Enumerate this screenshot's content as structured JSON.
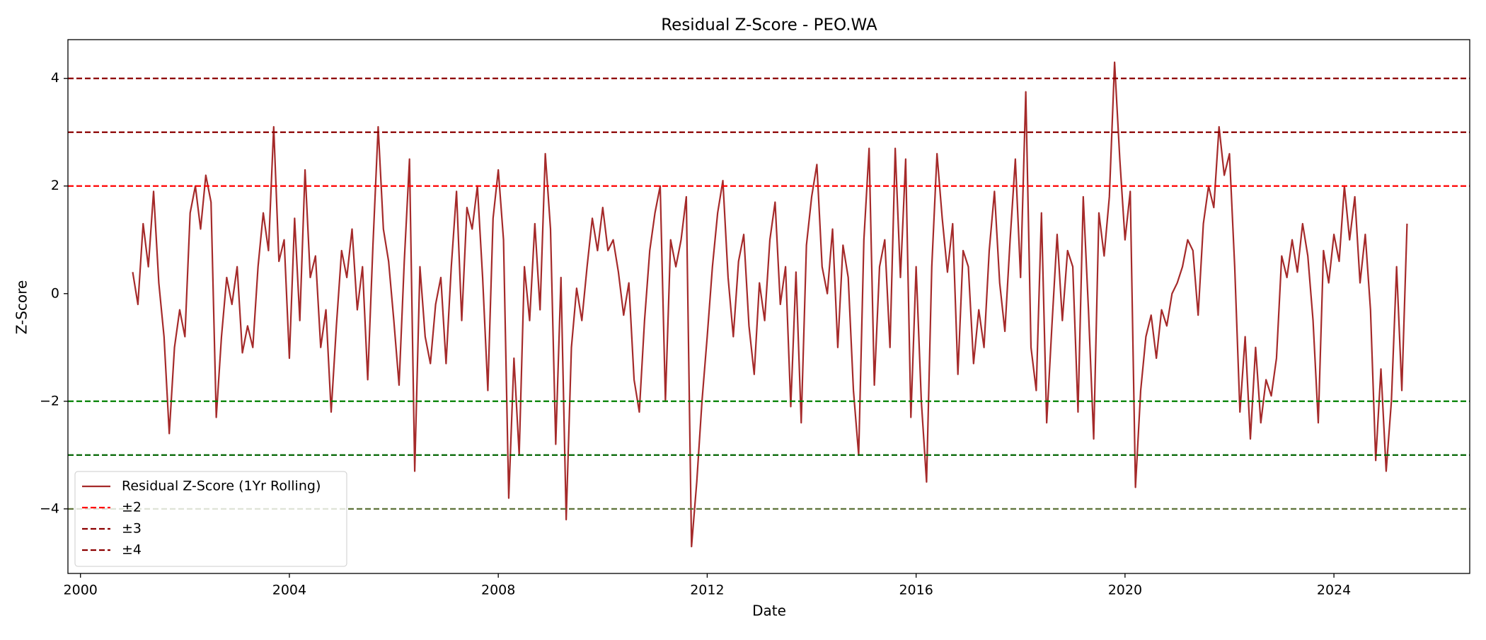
{
  "chart_data": {
    "type": "line",
    "title": "Residual Z-Score - PEO.WA",
    "x_label": "Date",
    "y_label": "Z-Score",
    "xlim": [
      1999.76,
      2026.6
    ],
    "ylim": [
      -5.2,
      4.72
    ],
    "xticks": [
      2000,
      2004,
      2008,
      2012,
      2016,
      2020,
      2024
    ],
    "yticks": [
      {
        "value": -4,
        "label": "−4"
      },
      {
        "value": -2,
        "label": "−2"
      },
      0,
      2,
      4
    ],
    "legend_position": "lower left",
    "x": [
      2001.0,
      2001.1,
      2001.2,
      2001.3,
      2001.4,
      2001.5,
      2001.6,
      2001.7,
      2001.8,
      2001.9,
      2002.0,
      2002.1,
      2002.2,
      2002.3,
      2002.4,
      2002.5,
      2002.6,
      2002.7,
      2002.8,
      2002.9,
      2003.0,
      2003.1,
      2003.2,
      2003.3,
      2003.4,
      2003.5,
      2003.6,
      2003.7,
      2003.8,
      2003.9,
      2004.0,
      2004.1,
      2004.2,
      2004.3,
      2004.4,
      2004.5,
      2004.6,
      2004.7,
      2004.8,
      2004.9,
      2005.0,
      2005.1,
      2005.2,
      2005.3,
      2005.4,
      2005.5,
      2005.6,
      2005.7,
      2005.8,
      2005.9,
      2006.0,
      2006.1,
      2006.2,
      2006.3,
      2006.4,
      2006.5,
      2006.6,
      2006.7,
      2006.8,
      2006.9,
      2007.0,
      2007.1,
      2007.2,
      2007.3,
      2007.4,
      2007.5,
      2007.6,
      2007.7,
      2007.8,
      2007.9,
      2008.0,
      2008.1,
      2008.2,
      2008.3,
      2008.4,
      2008.5,
      2008.6,
      2008.7,
      2008.8,
      2008.9,
      2009.0,
      2009.1,
      2009.2,
      2009.3,
      2009.4,
      2009.5,
      2009.6,
      2009.7,
      2009.8,
      2009.9,
      2010.0,
      2010.1,
      2010.2,
      2010.3,
      2010.4,
      2010.5,
      2010.6,
      2010.7,
      2010.8,
      2010.9,
      2011.0,
      2011.1,
      2011.2,
      2011.3,
      2011.4,
      2011.5,
      2011.6,
      2011.7,
      2011.8,
      2011.9,
      2012.0,
      2012.1,
      2012.2,
      2012.3,
      2012.4,
      2012.5,
      2012.6,
      2012.7,
      2012.8,
      2012.9,
      2013.0,
      2013.1,
      2013.2,
      2013.3,
      2013.4,
      2013.5,
      2013.6,
      2013.7,
      2013.8,
      2013.9,
      2014.0,
      2014.1,
      2014.2,
      2014.3,
      2014.4,
      2014.5,
      2014.6,
      2014.7,
      2014.8,
      2014.9,
      2015.0,
      2015.1,
      2015.2,
      2015.3,
      2015.4,
      2015.5,
      2015.6,
      2015.7,
      2015.8,
      2015.9,
      2016.0,
      2016.1,
      2016.2,
      2016.3,
      2016.4,
      2016.5,
      2016.6,
      2016.7,
      2016.8,
      2016.9,
      2017.0,
      2017.1,
      2017.2,
      2017.3,
      2017.4,
      2017.5,
      2017.6,
      2017.7,
      2017.8,
      2017.9,
      2018.0,
      2018.1,
      2018.2,
      2018.3,
      2018.4,
      2018.5,
      2018.6,
      2018.7,
      2018.8,
      2018.9,
      2019.0,
      2019.1,
      2019.2,
      2019.3,
      2019.4,
      2019.5,
      2019.6,
      2019.7,
      2019.8,
      2019.9,
      2020.0,
      2020.1,
      2020.2,
      2020.3,
      2020.4,
      2020.5,
      2020.6,
      2020.7,
      2020.8,
      2020.9,
      2021.0,
      2021.1,
      2021.2,
      2021.3,
      2021.4,
      2021.5,
      2021.6,
      2021.7,
      2021.8,
      2021.9,
      2022.0,
      2022.1,
      2022.2,
      2022.3,
      2022.4,
      2022.5,
      2022.6,
      2022.7,
      2022.8,
      2022.9,
      2023.0,
      2023.1,
      2023.2,
      2023.3,
      2023.4,
      2023.5,
      2023.6,
      2023.7,
      2023.8,
      2023.9,
      2024.0,
      2024.1,
      2024.2,
      2024.3,
      2024.4,
      2024.5,
      2024.6,
      2024.7,
      2024.8,
      2024.9,
      2025.0,
      2025.1,
      2025.2,
      2025.3,
      2025.4
    ],
    "series": [
      {
        "name": "Residual Z-Score (1Yr Rolling)",
        "color": "#a52a2a",
        "values": [
          0.4,
          -0.2,
          1.3,
          0.5,
          1.9,
          0.2,
          -0.8,
          -2.6,
          -1.0,
          -0.3,
          -0.8,
          1.5,
          2.0,
          1.2,
          2.2,
          1.7,
          -2.3,
          -0.8,
          0.3,
          -0.2,
          0.5,
          -1.1,
          -0.6,
          -1.0,
          0.5,
          1.5,
          0.8,
          3.1,
          0.6,
          1.0,
          -1.2,
          1.4,
          -0.5,
          2.3,
          0.3,
          0.7,
          -1.0,
          -0.3,
          -2.2,
          -0.6,
          0.8,
          0.3,
          1.2,
          -0.3,
          0.5,
          -1.6,
          0.9,
          3.1,
          1.2,
          0.6,
          -0.5,
          -1.7,
          0.6,
          2.5,
          -3.3,
          0.5,
          -0.8,
          -1.3,
          -0.2,
          0.3,
          -1.3,
          0.5,
          1.9,
          -0.5,
          1.6,
          1.2,
          2.0,
          0.3,
          -1.8,
          1.4,
          2.3,
          1.0,
          -3.8,
          -1.2,
          -3.0,
          0.5,
          -0.5,
          1.3,
          -0.3,
          2.6,
          1.2,
          -2.8,
          0.3,
          -4.2,
          -1.0,
          0.1,
          -0.5,
          0.5,
          1.4,
          0.8,
          1.6,
          0.8,
          1.0,
          0.4,
          -0.4,
          0.2,
          -1.6,
          -2.2,
          -0.5,
          0.8,
          1.5,
          2.0,
          -2.0,
          1.0,
          0.5,
          1.0,
          1.8,
          -4.7,
          -3.5,
          -2.0,
          -0.8,
          0.5,
          1.5,
          2.1,
          0.3,
          -0.8,
          0.6,
          1.1,
          -0.6,
          -1.5,
          0.2,
          -0.5,
          1.0,
          1.7,
          -0.2,
          0.5,
          -2.1,
          0.4,
          -2.4,
          0.9,
          1.8,
          2.4,
          0.5,
          0.0,
          1.2,
          -1.0,
          0.9,
          0.3,
          -1.8,
          -3.0,
          1.0,
          2.7,
          -1.7,
          0.5,
          1.0,
          -1.0,
          2.7,
          0.3,
          2.5,
          -2.3,
          0.5,
          -2.0,
          -3.5,
          0.5,
          2.6,
          1.4,
          0.4,
          1.3,
          -1.5,
          0.8,
          0.5,
          -1.3,
          -0.3,
          -1.0,
          0.8,
          1.9,
          0.2,
          -0.7,
          1.0,
          2.5,
          0.3,
          3.75,
          -1.0,
          -1.8,
          1.5,
          -2.4,
          -0.6,
          1.1,
          -0.5,
          0.8,
          0.5,
          -2.2,
          1.8,
          -0.3,
          -2.7,
          1.5,
          0.7,
          1.8,
          4.3,
          2.5,
          1.0,
          1.9,
          -3.6,
          -1.8,
          -0.8,
          -0.4,
          -1.2,
          -0.3,
          -0.6,
          0.0,
          0.2,
          0.5,
          1.0,
          0.8,
          -0.4,
          1.3,
          2.0,
          1.6,
          3.1,
          2.2,
          2.6,
          0.5,
          -2.2,
          -0.8,
          -2.7,
          -1.0,
          -2.4,
          -1.6,
          -1.9,
          -1.2,
          0.7,
          0.3,
          1.0,
          0.4,
          1.3,
          0.7,
          -0.5,
          -2.4,
          0.8,
          0.2,
          1.1,
          0.6,
          2.0,
          1.0,
          1.8,
          0.2,
          1.1,
          -0.3,
          -3.1,
          -1.4,
          -3.3,
          -2.0,
          0.5,
          -1.8,
          1.3
        ]
      }
    ],
    "thresholds": [
      {
        "name": "±2",
        "values": [
          2,
          -2
        ],
        "colors": [
          "#ff0000",
          "#008000"
        ]
      },
      {
        "name": "±3",
        "values": [
          3,
          -3
        ],
        "colors": [
          "#8b0000",
          "#006400"
        ]
      },
      {
        "name": "±4",
        "values": [
          4,
          -4
        ],
        "colors": [
          "#8b0000",
          "#556b2f"
        ]
      }
    ]
  }
}
